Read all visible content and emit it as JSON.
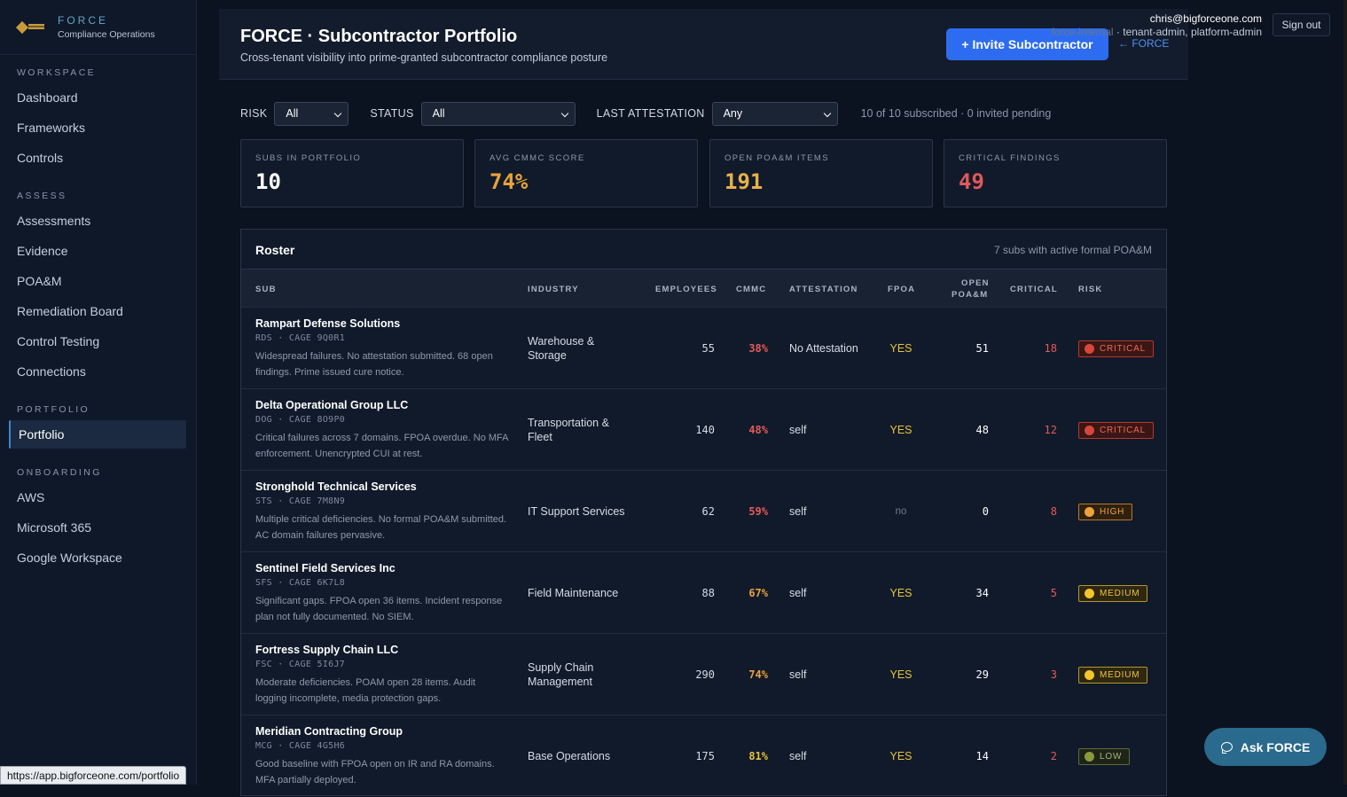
{
  "brand": {
    "name": "FORCE",
    "subtitle": "Compliance Operations"
  },
  "sidebar": {
    "sections": [
      {
        "label": "WORKSPACE",
        "items": [
          "Dashboard",
          "Frameworks",
          "Controls"
        ]
      },
      {
        "label": "ASSESS",
        "items": [
          "Assessments",
          "Evidence",
          "POA&M",
          "Remediation Board",
          "Control Testing",
          "Connections"
        ]
      },
      {
        "label": "PORTFOLIO",
        "items": [
          "Portfolio"
        ]
      },
      {
        "label": "ONBOARDING",
        "items": [
          "AWS",
          "Microsoft 365",
          "Google Workspace"
        ]
      }
    ],
    "active": "Portfolio"
  },
  "user": {
    "email": "chris@bigforceone.com",
    "internal": "force-internal",
    "roles": "tenant-admin, platform-admin",
    "signout_label": "Sign out"
  },
  "header": {
    "title": "FORCE · Subcontractor Portfolio",
    "subtitle": "Cross-tenant visibility into prime-granted subcontractor compliance posture",
    "invite_label": "+ Invite Subcontractor",
    "back_label": "← FORCE"
  },
  "filters": {
    "risk_label": "RISK",
    "risk_value": "All",
    "status_label": "STATUS",
    "status_value": "All",
    "attest_label": "LAST ATTESTATION",
    "attest_value": "Any",
    "count_text": "10 of 10 subscribed · 0 invited pending"
  },
  "kpis": [
    {
      "label": "SUBS IN PORTFOLIO",
      "value": "10",
      "color": "#ffffff"
    },
    {
      "label": "AVG CMMC SCORE",
      "value": "74%",
      "color": "#e8a23a"
    },
    {
      "label": "OPEN POA&M ITEMS",
      "value": "191",
      "color": "#e8b04a"
    },
    {
      "label": "CRITICAL FINDINGS",
      "value": "49",
      "color": "#e0595a"
    }
  ],
  "roster": {
    "title": "Roster",
    "note": "7 subs with active formal POA&M",
    "columns": {
      "sub": "SUB",
      "industry": "INDUSTRY",
      "employees": "EMPLOYEES",
      "cmmc": "CMMC",
      "attestation": "ATTESTATION",
      "fpoa": "FPOA",
      "open_line1": "OPEN",
      "open_line2": "POA&M",
      "critical": "CRITICAL",
      "risk": "RISK"
    },
    "rows": [
      {
        "name": "Rampart Defense Solutions",
        "code": "RDS · CAGE 9Q0R1",
        "desc": "Widespread failures. No attestation submitted. 68 open findings. Prime issued cure notice.",
        "industry": "Warehouse & Storage",
        "employees": "55",
        "cmmc": "38%",
        "cmmc_color": "#e55a5a",
        "attestation": "No Attestation",
        "fpoa": "YES",
        "open": "51",
        "critical": "18",
        "risk": "CRITICAL",
        "risk_level": "critical"
      },
      {
        "name": "Delta Operational Group LLC",
        "code": "DOG · CAGE 8O9P0",
        "desc": "Critical failures across 7 domains. FPOA overdue. No MFA enforcement. Unencrypted CUI at rest.",
        "industry": "Transportation & Fleet",
        "employees": "140",
        "cmmc": "48%",
        "cmmc_color": "#e55a5a",
        "attestation": "self",
        "fpoa": "YES",
        "open": "48",
        "critical": "12",
        "risk": "CRITICAL",
        "risk_level": "critical"
      },
      {
        "name": "Stronghold Technical Services",
        "code": "STS · CAGE 7M8N9",
        "desc": "Multiple critical deficiencies. No formal POA&M submitted. AC domain failures pervasive.",
        "industry": "IT Support Services",
        "employees": "62",
        "cmmc": "59%",
        "cmmc_color": "#e55a5a",
        "attestation": "self",
        "fpoa": "no",
        "open": "0",
        "critical": "8",
        "risk": "HIGH",
        "risk_level": "high"
      },
      {
        "name": "Sentinel Field Services Inc",
        "code": "SFS · CAGE 6K7L8",
        "desc": "Significant gaps. FPOA open 36 items. Incident response plan not fully documented. No SIEM.",
        "industry": "Field Maintenance",
        "employees": "88",
        "cmmc": "67%",
        "cmmc_color": "#e8a23a",
        "attestation": "self",
        "fpoa": "YES",
        "open": "34",
        "critical": "5",
        "risk": "MEDIUM",
        "risk_level": "medium"
      },
      {
        "name": "Fortress Supply Chain LLC",
        "code": "FSC · CAGE 5I6J7",
        "desc": "Moderate deficiencies. POAM open 28 items. Audit logging incomplete, media protection gaps.",
        "industry": "Supply Chain Management",
        "employees": "290",
        "cmmc": "74%",
        "cmmc_color": "#e8a23a",
        "attestation": "self",
        "fpoa": "YES",
        "open": "29",
        "critical": "3",
        "risk": "MEDIUM",
        "risk_level": "medium"
      },
      {
        "name": "Meridian Contracting Group",
        "code": "MCG · CAGE 4G5H6",
        "desc": "Good baseline with FPOA open on IR and RA domains. MFA partially deployed.",
        "industry": "Base Operations",
        "employees": "175",
        "cmmc": "81%",
        "cmmc_color": "#e6c23a",
        "attestation": "self",
        "fpoa": "YES",
        "open": "14",
        "critical": "2",
        "risk": "LOW",
        "risk_level": "low"
      }
    ]
  },
  "risk_styles": {
    "critical": {
      "fg": "#ef6a5a",
      "bg": "#3a1614",
      "border": "#b5382e",
      "dot": "#d8463c"
    },
    "high": {
      "fg": "#f0a23a",
      "bg": "#2f2110",
      "border": "#b9772a",
      "dot": "#f0a23a"
    },
    "medium": {
      "fg": "#f0c23a",
      "bg": "#2e2711",
      "border": "#b8952a",
      "dot": "#f4c628"
    },
    "low": {
      "fg": "#a9b47a",
      "bg": "#1e2418",
      "border": "#5f6a3a",
      "dot": "#8a9a3a"
    }
  },
  "ask_label": "Ask FORCE",
  "status_url": "https://app.bigforceone.com/portfolio"
}
